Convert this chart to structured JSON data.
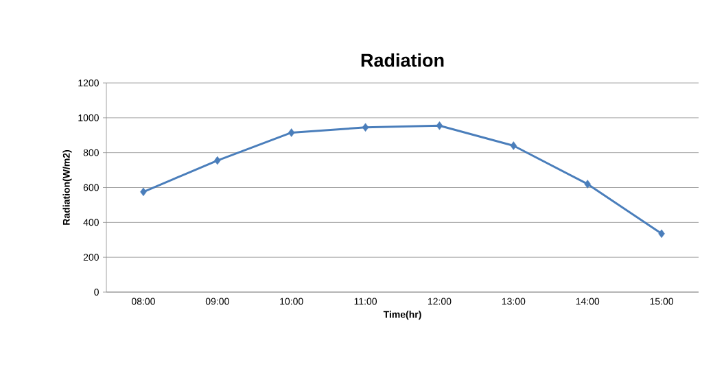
{
  "chart_data": {
    "type": "line",
    "title": "Radiation",
    "xlabel": "Time(hr)",
    "ylabel": "Radiation(W/m2)",
    "categories": [
      "08:00",
      "09:00",
      "10:00",
      "11:00",
      "12:00",
      "13:00",
      "14:00",
      "15:00"
    ],
    "series": [
      {
        "color": "#4a7ebb",
        "values": [
          575,
          755,
          915,
          945,
          955,
          840,
          620,
          335
        ]
      }
    ],
    "ylim": [
      0,
      1200
    ],
    "yticks": [
      0,
      200,
      400,
      600,
      800,
      1000,
      1200
    ],
    "grid": "y",
    "legend": false,
    "marker": "diamond",
    "line_style": "solid"
  }
}
